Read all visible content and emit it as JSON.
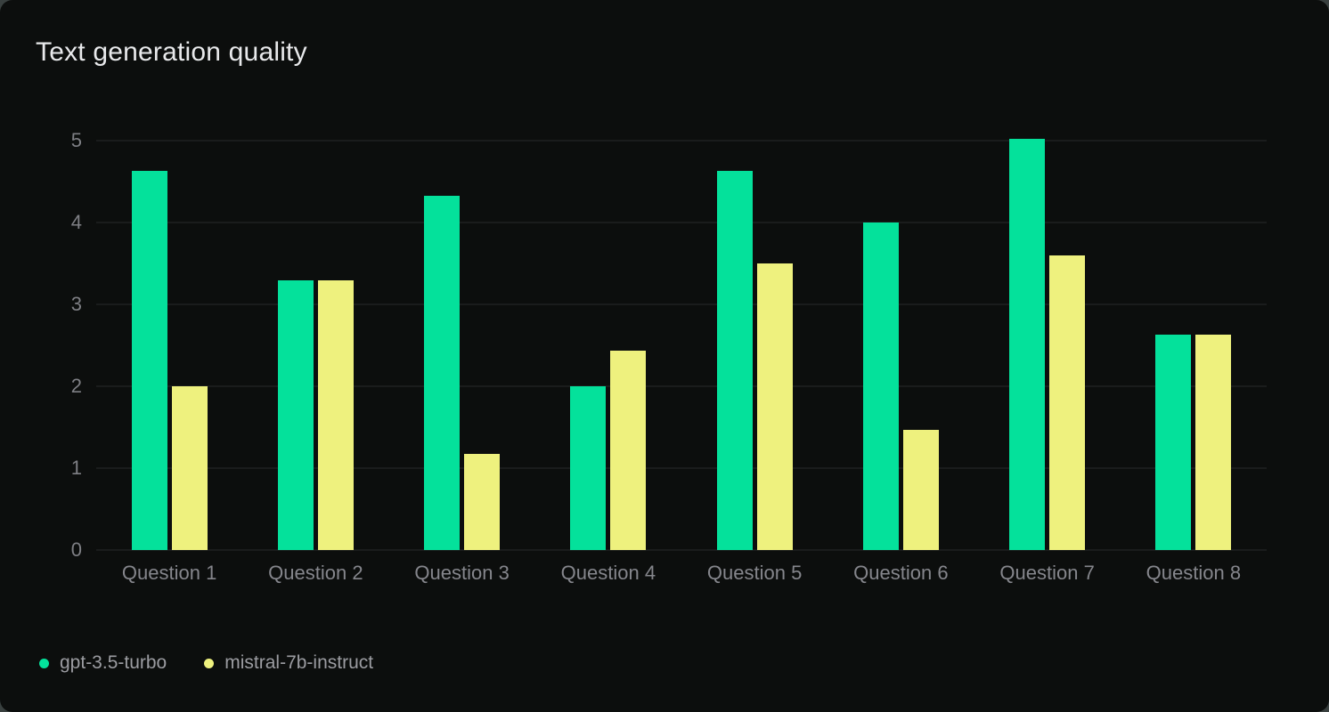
{
  "chart_data": {
    "type": "bar",
    "title": "Text generation quality",
    "categories": [
      "Question 1",
      "Question 2",
      "Question 3",
      "Question 4",
      "Question 5",
      "Question 6",
      "Question 7",
      "Question 8"
    ],
    "series": [
      {
        "name": "gpt-3.5-turbo",
        "color": "#04e19b",
        "values": [
          4.63,
          3.29,
          4.33,
          2.0,
          4.63,
          4.0,
          5.02,
          2.63
        ]
      },
      {
        "name": "mistral-7b-instruct",
        "color": "#eef17e",
        "values": [
          2.0,
          3.29,
          1.17,
          2.43,
          3.5,
          1.47,
          3.6,
          2.63
        ]
      }
    ],
    "xlabel": "",
    "ylabel": "",
    "ylim": [
      0,
      5
    ],
    "yticks": [
      0,
      1,
      2,
      3,
      4,
      5
    ],
    "grid": true,
    "legend_position": "bottom-left",
    "colors": {
      "card_background": "#0c0e0d",
      "gridline": "#282b2a",
      "axis_text": "#85868c"
    }
  }
}
